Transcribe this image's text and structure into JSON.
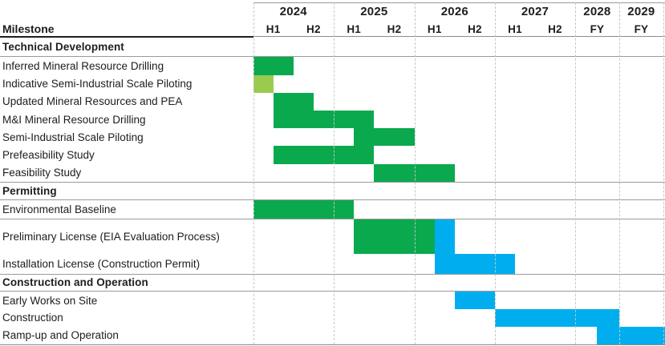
{
  "header": {
    "milestone_label": "Milestone"
  },
  "chart_data": {
    "type": "gantt",
    "time_axis": {
      "columns": [
        {
          "year": "2024",
          "subs": [
            "H1",
            "H2"
          ]
        },
        {
          "year": "2025",
          "subs": [
            "H1",
            "H2"
          ]
        },
        {
          "year": "2026",
          "subs": [
            "H1",
            "H2"
          ]
        },
        {
          "year": "2027",
          "subs": [
            "H1",
            "H2"
          ]
        },
        {
          "year": "2028",
          "subs": [
            "FY"
          ]
        },
        {
          "year": "2029",
          "subs": [
            "FY"
          ]
        }
      ],
      "range_note": "bars placed at quarter-year resolution from start of 2024 to end of 2029"
    },
    "colors": {
      "green": "#0BA94E",
      "light-green": "#9ACB4F",
      "blue": "#00AEEF"
    },
    "sections": [
      {
        "title": "Technical Development",
        "rows": [
          {
            "label": "Inferred Mineral Resource Drilling",
            "bars": [
              {
                "start": 2024.0,
                "end": 2024.5,
                "color": "green"
              }
            ]
          },
          {
            "label": "Indicative Semi-Industrial Scale Piloting",
            "bars": [
              {
                "start": 2024.0,
                "end": 2024.25,
                "color": "light-green"
              }
            ]
          },
          {
            "label": "Updated Mineral Resources and PEA",
            "bars": [
              {
                "start": 2024.25,
                "end": 2024.75,
                "color": "green"
              }
            ]
          },
          {
            "label": "M&I Mineral Resource Drilling",
            "bars": [
              {
                "start": 2024.25,
                "end": 2025.5,
                "color": "green"
              }
            ]
          },
          {
            "label": "Semi-Industrial Scale Piloting",
            "bars": [
              {
                "start": 2025.25,
                "end": 2026.0,
                "color": "green"
              }
            ]
          },
          {
            "label": "Prefeasibility Study",
            "bars": [
              {
                "start": 2024.25,
                "end": 2025.5,
                "color": "green"
              }
            ]
          },
          {
            "label": "Feasibility Study",
            "bars": [
              {
                "start": 2025.5,
                "end": 2026.5,
                "color": "green"
              }
            ]
          }
        ]
      },
      {
        "title": "Permitting",
        "rows": [
          {
            "label": "Environmental Baseline",
            "bars": [
              {
                "start": 2024.0,
                "end": 2025.25,
                "color": "green"
              }
            ]
          },
          {
            "label": "Preliminary License (EIA Evaluation Process)",
            "bars": [
              {
                "start": 2025.25,
                "end": 2026.25,
                "color": "green"
              },
              {
                "start": 2026.25,
                "end": 2026.5,
                "color": "blue"
              }
            ]
          },
          {
            "label": "Installation License (Construction Permit)",
            "bars": [
              {
                "start": 2026.25,
                "end": 2027.25,
                "color": "blue"
              }
            ]
          }
        ]
      },
      {
        "title": "Construction and Operation",
        "rows": [
          {
            "label": "Early Works on Site",
            "bars": [
              {
                "start": 2026.5,
                "end": 2027.0,
                "color": "blue"
              }
            ]
          },
          {
            "label": "Construction",
            "bars": [
              {
                "start": 2027.0,
                "end": 2029.0,
                "color": "blue"
              }
            ]
          },
          {
            "label": "Ramp-up and Operation",
            "bars": [
              {
                "start": 2028.5,
                "end": 2030.0,
                "color": "blue",
                "to_edge": true
              }
            ]
          }
        ]
      }
    ]
  }
}
